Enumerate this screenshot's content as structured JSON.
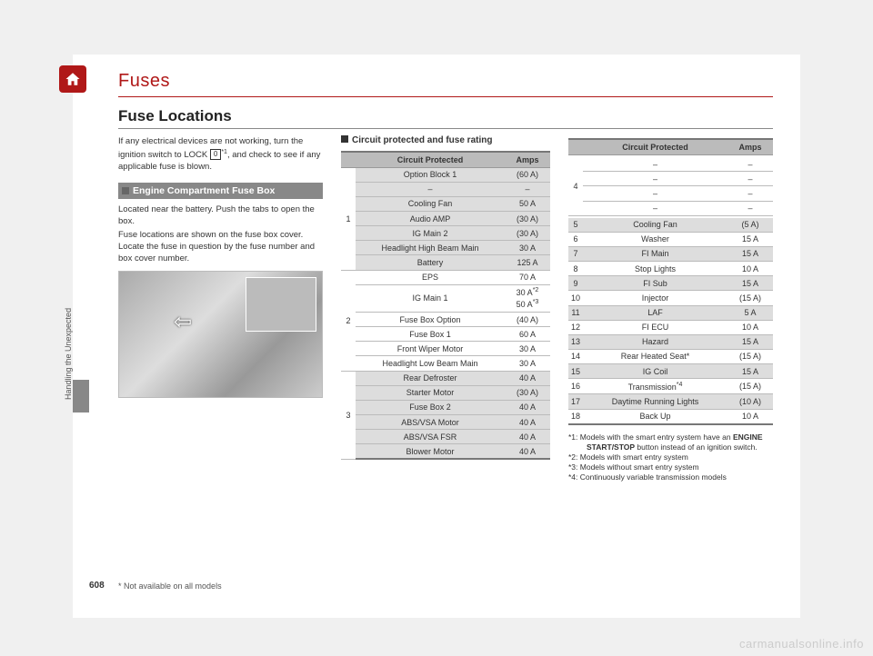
{
  "chapter_title": "Fuses",
  "section_title": "Fuse Locations",
  "page_number": "608",
  "side_tab": "Handling the Unexpected",
  "footnote_bottom": "* Not available on all models",
  "watermark": "carmanualsonline.info",
  "intro": {
    "p1a": "If any electrical devices are not working, turn the ignition switch to LOCK ",
    "lock": "0",
    "p1b_sup": "*1",
    "p1c": ", and check to see if any applicable fuse is blown.",
    "subheading": "Engine Compartment Fuse Box",
    "p2": "Located near the battery. Push the tabs to open the box.",
    "p3": "Fuse locations are shown on the fuse box cover. Locate the fuse in question by the fuse number and box cover number."
  },
  "col2": {
    "heading": "Circuit protected and fuse rating",
    "th_circuit": "Circuit Protected",
    "th_amps": "Amps",
    "groups": [
      {
        "id": "1",
        "shaded": true,
        "rows": [
          {
            "c": "Option Block 1",
            "a": "(60 A)"
          },
          {
            "c": "–",
            "a": "–"
          },
          {
            "c": "Cooling Fan",
            "a": "50 A"
          },
          {
            "c": "Audio AMP",
            "a": "(30 A)"
          },
          {
            "c": "IG Main 2",
            "a": "(30 A)"
          },
          {
            "c": "Headlight High Beam Main",
            "a": "30 A"
          },
          {
            "c": "Battery",
            "a": "125 A"
          }
        ]
      },
      {
        "id": "2",
        "shaded": false,
        "rows": [
          {
            "c": "EPS",
            "a": "70 A"
          },
          {
            "c": "IG Main 1",
            "a": "30 A*2\n50 A*3",
            "multi": true
          },
          {
            "c": "Fuse Box Option",
            "a": "(40 A)"
          },
          {
            "c": "Fuse Box 1",
            "a": "60 A"
          },
          {
            "c": "Front Wiper Motor",
            "a": "30 A"
          },
          {
            "c": "Headlight Low Beam Main",
            "a": "30 A"
          }
        ]
      },
      {
        "id": "3",
        "shaded": true,
        "rows": [
          {
            "c": "Rear Defroster",
            "a": "40 A"
          },
          {
            "c": "Starter Motor",
            "a": "(30 A)"
          },
          {
            "c": "Fuse Box 2",
            "a": "40 A"
          },
          {
            "c": "ABS/VSA Motor",
            "a": "40 A"
          },
          {
            "c": "ABS/VSA FSR",
            "a": "40 A"
          },
          {
            "c": "Blower Motor",
            "a": "40 A"
          }
        ]
      }
    ]
  },
  "col3": {
    "th_circuit": "Circuit Protected",
    "th_amps": "Amps",
    "group4_id": "4",
    "group4_rows": [
      {
        "c": "–",
        "a": "–"
      },
      {
        "c": "–",
        "a": "–"
      },
      {
        "c": "–",
        "a": "–"
      },
      {
        "c": "–",
        "a": "–"
      }
    ],
    "rows": [
      {
        "n": "5",
        "c": "Cooling Fan",
        "a": "(5 A)",
        "alt": true
      },
      {
        "n": "6",
        "c": "Washer",
        "a": "15 A"
      },
      {
        "n": "7",
        "c": "FI Main",
        "a": "15 A",
        "alt": true
      },
      {
        "n": "8",
        "c": "Stop Lights",
        "a": "10 A"
      },
      {
        "n": "9",
        "c": "FI Sub",
        "a": "15 A",
        "alt": true
      },
      {
        "n": "10",
        "c": "Injector",
        "a": "(15 A)"
      },
      {
        "n": "11",
        "c": "LAF",
        "a": "5 A",
        "alt": true
      },
      {
        "n": "12",
        "c": "FI ECU",
        "a": "10 A"
      },
      {
        "n": "13",
        "c": "Hazard",
        "a": "15 A",
        "alt": true
      },
      {
        "n": "14",
        "c": "Rear Heated Seat*",
        "a": "(15 A)"
      },
      {
        "n": "15",
        "c": "IG Coil",
        "a": "15 A",
        "alt": true
      },
      {
        "n": "16",
        "c": "Transmission*4",
        "a": "(15 A)",
        "sup": "4"
      },
      {
        "n": "17",
        "c": "Daytime Running Lights",
        "a": "(10 A)",
        "alt": true
      },
      {
        "n": "18",
        "c": "Back Up",
        "a": "10 A"
      }
    ],
    "notes": [
      "*1: Models with the smart entry system have an ENGINE START/STOP button instead of an ignition switch.",
      "*2: Models with smart entry system",
      "*3: Models without smart entry system",
      "*4: Continuously variable transmission models"
    ]
  }
}
